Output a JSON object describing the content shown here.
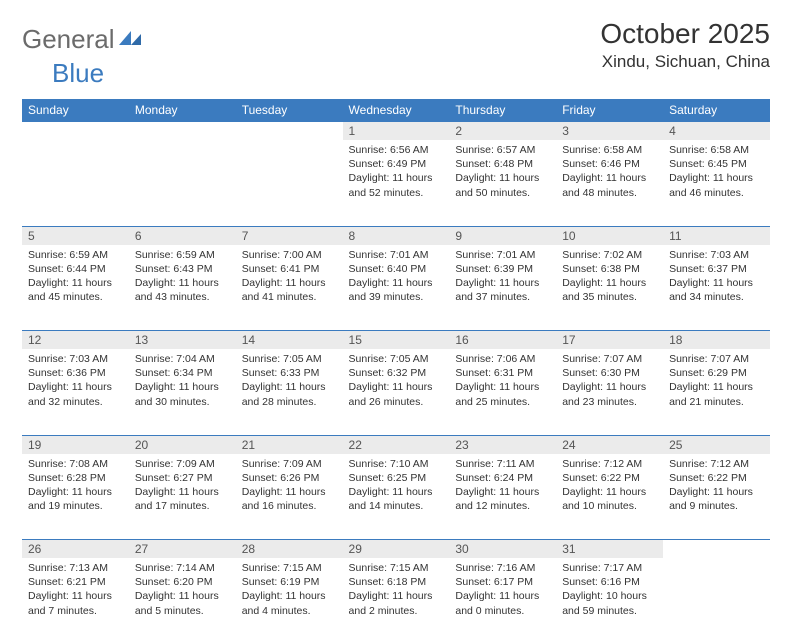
{
  "logo": {
    "text1": "General",
    "text2": "Blue"
  },
  "title": "October 2025",
  "location": "Xindu, Sichuan, China",
  "colors": {
    "header_bg": "#3b7bbf",
    "daynum_bg": "#ebebeb",
    "border": "#3b7bbf"
  },
  "weekdays": [
    "Sunday",
    "Monday",
    "Tuesday",
    "Wednesday",
    "Thursday",
    "Friday",
    "Saturday"
  ],
  "weeks": [
    [
      null,
      null,
      null,
      {
        "n": "1",
        "sr": "Sunrise: 6:56 AM",
        "ss": "Sunset: 6:49 PM",
        "dl": "Daylight: 11 hours and 52 minutes."
      },
      {
        "n": "2",
        "sr": "Sunrise: 6:57 AM",
        "ss": "Sunset: 6:48 PM",
        "dl": "Daylight: 11 hours and 50 minutes."
      },
      {
        "n": "3",
        "sr": "Sunrise: 6:58 AM",
        "ss": "Sunset: 6:46 PM",
        "dl": "Daylight: 11 hours and 48 minutes."
      },
      {
        "n": "4",
        "sr": "Sunrise: 6:58 AM",
        "ss": "Sunset: 6:45 PM",
        "dl": "Daylight: 11 hours and 46 minutes."
      }
    ],
    [
      {
        "n": "5",
        "sr": "Sunrise: 6:59 AM",
        "ss": "Sunset: 6:44 PM",
        "dl": "Daylight: 11 hours and 45 minutes."
      },
      {
        "n": "6",
        "sr": "Sunrise: 6:59 AM",
        "ss": "Sunset: 6:43 PM",
        "dl": "Daylight: 11 hours and 43 minutes."
      },
      {
        "n": "7",
        "sr": "Sunrise: 7:00 AM",
        "ss": "Sunset: 6:41 PM",
        "dl": "Daylight: 11 hours and 41 minutes."
      },
      {
        "n": "8",
        "sr": "Sunrise: 7:01 AM",
        "ss": "Sunset: 6:40 PM",
        "dl": "Daylight: 11 hours and 39 minutes."
      },
      {
        "n": "9",
        "sr": "Sunrise: 7:01 AM",
        "ss": "Sunset: 6:39 PM",
        "dl": "Daylight: 11 hours and 37 minutes."
      },
      {
        "n": "10",
        "sr": "Sunrise: 7:02 AM",
        "ss": "Sunset: 6:38 PM",
        "dl": "Daylight: 11 hours and 35 minutes."
      },
      {
        "n": "11",
        "sr": "Sunrise: 7:03 AM",
        "ss": "Sunset: 6:37 PM",
        "dl": "Daylight: 11 hours and 34 minutes."
      }
    ],
    [
      {
        "n": "12",
        "sr": "Sunrise: 7:03 AM",
        "ss": "Sunset: 6:36 PM",
        "dl": "Daylight: 11 hours and 32 minutes."
      },
      {
        "n": "13",
        "sr": "Sunrise: 7:04 AM",
        "ss": "Sunset: 6:34 PM",
        "dl": "Daylight: 11 hours and 30 minutes."
      },
      {
        "n": "14",
        "sr": "Sunrise: 7:05 AM",
        "ss": "Sunset: 6:33 PM",
        "dl": "Daylight: 11 hours and 28 minutes."
      },
      {
        "n": "15",
        "sr": "Sunrise: 7:05 AM",
        "ss": "Sunset: 6:32 PM",
        "dl": "Daylight: 11 hours and 26 minutes."
      },
      {
        "n": "16",
        "sr": "Sunrise: 7:06 AM",
        "ss": "Sunset: 6:31 PM",
        "dl": "Daylight: 11 hours and 25 minutes."
      },
      {
        "n": "17",
        "sr": "Sunrise: 7:07 AM",
        "ss": "Sunset: 6:30 PM",
        "dl": "Daylight: 11 hours and 23 minutes."
      },
      {
        "n": "18",
        "sr": "Sunrise: 7:07 AM",
        "ss": "Sunset: 6:29 PM",
        "dl": "Daylight: 11 hours and 21 minutes."
      }
    ],
    [
      {
        "n": "19",
        "sr": "Sunrise: 7:08 AM",
        "ss": "Sunset: 6:28 PM",
        "dl": "Daylight: 11 hours and 19 minutes."
      },
      {
        "n": "20",
        "sr": "Sunrise: 7:09 AM",
        "ss": "Sunset: 6:27 PM",
        "dl": "Daylight: 11 hours and 17 minutes."
      },
      {
        "n": "21",
        "sr": "Sunrise: 7:09 AM",
        "ss": "Sunset: 6:26 PM",
        "dl": "Daylight: 11 hours and 16 minutes."
      },
      {
        "n": "22",
        "sr": "Sunrise: 7:10 AM",
        "ss": "Sunset: 6:25 PM",
        "dl": "Daylight: 11 hours and 14 minutes."
      },
      {
        "n": "23",
        "sr": "Sunrise: 7:11 AM",
        "ss": "Sunset: 6:24 PM",
        "dl": "Daylight: 11 hours and 12 minutes."
      },
      {
        "n": "24",
        "sr": "Sunrise: 7:12 AM",
        "ss": "Sunset: 6:22 PM",
        "dl": "Daylight: 11 hours and 10 minutes."
      },
      {
        "n": "25",
        "sr": "Sunrise: 7:12 AM",
        "ss": "Sunset: 6:22 PM",
        "dl": "Daylight: 11 hours and 9 minutes."
      }
    ],
    [
      {
        "n": "26",
        "sr": "Sunrise: 7:13 AM",
        "ss": "Sunset: 6:21 PM",
        "dl": "Daylight: 11 hours and 7 minutes."
      },
      {
        "n": "27",
        "sr": "Sunrise: 7:14 AM",
        "ss": "Sunset: 6:20 PM",
        "dl": "Daylight: 11 hours and 5 minutes."
      },
      {
        "n": "28",
        "sr": "Sunrise: 7:15 AM",
        "ss": "Sunset: 6:19 PM",
        "dl": "Daylight: 11 hours and 4 minutes."
      },
      {
        "n": "29",
        "sr": "Sunrise: 7:15 AM",
        "ss": "Sunset: 6:18 PM",
        "dl": "Daylight: 11 hours and 2 minutes."
      },
      {
        "n": "30",
        "sr": "Sunrise: 7:16 AM",
        "ss": "Sunset: 6:17 PM",
        "dl": "Daylight: 11 hours and 0 minutes."
      },
      {
        "n": "31",
        "sr": "Sunrise: 7:17 AM",
        "ss": "Sunset: 6:16 PM",
        "dl": "Daylight: 10 hours and 59 minutes."
      },
      null
    ]
  ]
}
